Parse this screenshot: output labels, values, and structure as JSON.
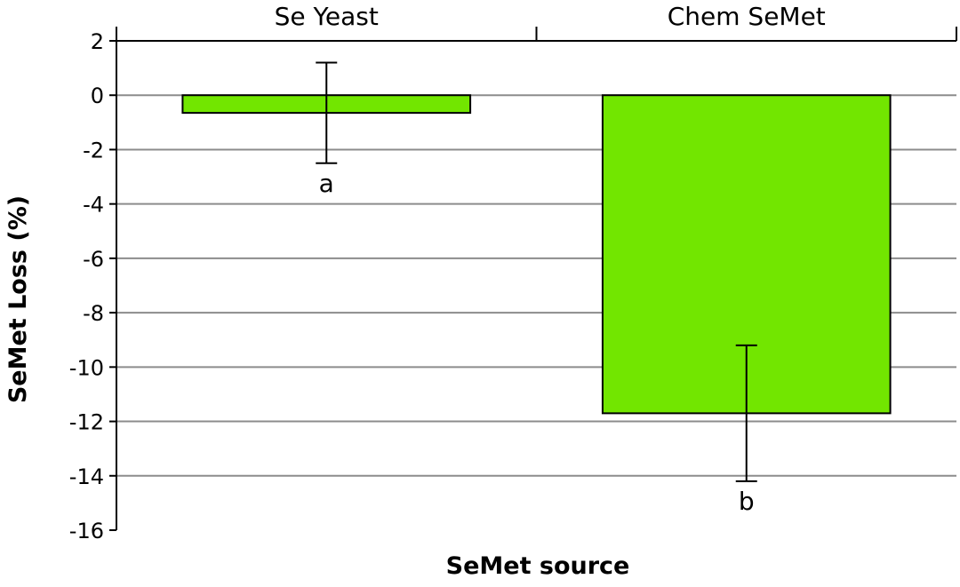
{
  "chart_data": {
    "type": "bar",
    "categories": [
      "Se Yeast",
      "Chem SeMet"
    ],
    "values": [
      -0.65,
      -11.7
    ],
    "error": [
      1.85,
      2.5
    ],
    "significance_letters": [
      "a",
      "b"
    ],
    "title": "",
    "xlabel": "SeMet source",
    "ylabel": "SeMet Loss (%)",
    "ylim": [
      -16,
      2
    ],
    "yticks": [
      2,
      0,
      -2,
      -4,
      -6,
      -8,
      -10,
      -12,
      -14,
      -16
    ],
    "category_axis_position": "top",
    "grid": true,
    "legend": "none",
    "bar_color": "#72e600",
    "bar_edge_color": "#000000",
    "grid_color": "#8c8c8c"
  }
}
